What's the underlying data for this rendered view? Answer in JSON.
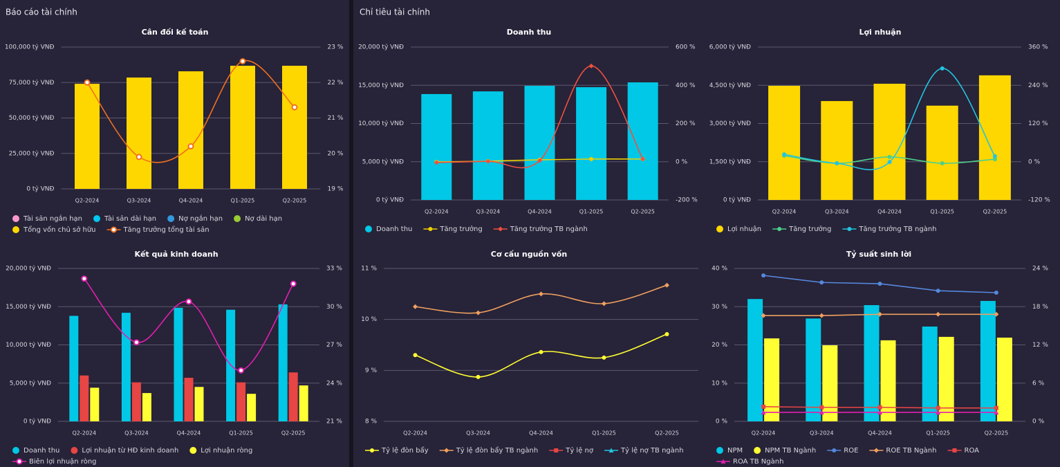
{
  "panels": [
    {
      "title": "Báo cáo tài chính"
    },
    {
      "title": "Chỉ tiêu tài chính"
    }
  ],
  "chart_data": [
    {
      "type": "bar",
      "title": "Cân đối kế toán",
      "smooth": true,
      "categories": [
        "Q2-2024",
        "Q3-2024",
        "Q4-2024",
        "Q1-2025",
        "Q2-2025"
      ],
      "ylim": [
        0,
        100000
      ],
      "yticks": [
        {
          "value": 0,
          "label": "0 tỷ VNĐ"
        },
        {
          "value": 25000,
          "label": "25,000 tỷ VNĐ"
        },
        {
          "value": 50000,
          "label": "50,000 tỷ VNĐ"
        },
        {
          "value": 75000,
          "label": "75,000 tỷ VNĐ"
        },
        {
          "value": 100000,
          "label": "100,000 tỷ VNĐ"
        }
      ],
      "y2lim": [
        19,
        23
      ],
      "y2ticks": [
        {
          "value": 19,
          "label": "19 %"
        },
        {
          "value": 20,
          "label": "20 %"
        },
        {
          "value": 21,
          "label": "21 %"
        },
        {
          "value": 22,
          "label": "22 %"
        },
        {
          "value": 23,
          "label": "23 %"
        }
      ],
      "series": [
        {
          "name": "Tài sản ngắn hạn",
          "type": "bar",
          "color": "#ff99cc",
          "values": [
            null,
            null,
            null,
            null,
            null
          ]
        },
        {
          "name": "Tài sản dài hạn",
          "type": "bar",
          "color": "#00c8f0",
          "values": [
            null,
            null,
            null,
            null,
            null
          ]
        },
        {
          "name": "Nợ ngắn hạn",
          "type": "bar",
          "color": "#3399dd",
          "values": [
            null,
            null,
            null,
            null,
            null
          ]
        },
        {
          "name": "Nợ dài hạn",
          "type": "bar",
          "color": "#99cc33",
          "values": [
            null,
            null,
            null,
            null,
            null
          ]
        },
        {
          "name": "Tổng vốn chủ sở hữu",
          "type": "bar",
          "color": "#ffd700",
          "values": [
            74100,
            78500,
            82900,
            86800,
            86800
          ]
        },
        {
          "name": "Tăng trưởng tổng tài sản",
          "type": "line",
          "axis": "y2",
          "color": "#f07020",
          "marker": "circle-open",
          "values": [
            22.0,
            19.9,
            20.2,
            22.6,
            21.3
          ]
        }
      ]
    },
    {
      "type": "bar",
      "title": "Kết quả kinh doanh",
      "smooth": true,
      "categories": [
        "Q2-2024",
        "Q3-2024",
        "Q4-2024",
        "Q1-2025",
        "Q2-2025"
      ],
      "ylim": [
        0,
        20000
      ],
      "yticks": [
        {
          "value": 0,
          "label": "0 tỷ VNĐ"
        },
        {
          "value": 5000,
          "label": "5,000 tỷ VNĐ"
        },
        {
          "value": 10000,
          "label": "10,000 tỷ VNĐ"
        },
        {
          "value": 15000,
          "label": "15,000 tỷ VNĐ"
        },
        {
          "value": 20000,
          "label": "20,000 tỷ VNĐ"
        }
      ],
      "y2lim": [
        21,
        33
      ],
      "y2ticks": [
        {
          "value": 21,
          "label": "21 %"
        },
        {
          "value": 24,
          "label": "24 %"
        },
        {
          "value": 27,
          "label": "27 %"
        },
        {
          "value": 30,
          "label": "30 %"
        },
        {
          "value": 33,
          "label": "33 %"
        }
      ],
      "series": [
        {
          "name": "Doanh thu",
          "type": "bar",
          "color": "#00c8e6",
          "values": [
            13800,
            14200,
            14850,
            14600,
            15300
          ]
        },
        {
          "name": "Lợi nhuận từ HĐ kinh doanh",
          "type": "bar",
          "color": "#e84545",
          "values": [
            6000,
            5100,
            5700,
            5100,
            6400
          ]
        },
        {
          "name": "Lợi nhuận ròng",
          "type": "bar",
          "color": "#ffff33",
          "values": [
            4400,
            3700,
            4500,
            3600,
            4700
          ]
        },
        {
          "name": "Biên lợi nhuận ròng",
          "type": "line",
          "axis": "y2",
          "color": "#e020b0",
          "marker": "circle-open",
          "values": [
            32.2,
            27.2,
            30.4,
            25.0,
            31.8
          ]
        }
      ]
    },
    {
      "type": "bar",
      "title": "Doanh thu",
      "smooth": true,
      "categories": [
        "Q2-2024",
        "Q3-2024",
        "Q4-2024",
        "Q1-2025",
        "Q2-2025"
      ],
      "ylim": [
        0,
        20000
      ],
      "yticks": [
        {
          "value": 0,
          "label": "0 tỷ VNĐ"
        },
        {
          "value": 5000,
          "label": "5,000 tỷ VNĐ"
        },
        {
          "value": 10000,
          "label": "10,000 tỷ VNĐ"
        },
        {
          "value": 15000,
          "label": "15,000 tỷ VNĐ"
        },
        {
          "value": 20000,
          "label": "20,000 tỷ VNĐ"
        }
      ],
      "y2lim": [
        -200,
        600
      ],
      "y2ticks": [
        {
          "value": -200,
          "label": "-200 %"
        },
        {
          "value": 0,
          "label": "0 %"
        },
        {
          "value": 200,
          "label": "200 %"
        },
        {
          "value": 400,
          "label": "400 %"
        },
        {
          "value": 600,
          "label": "600 %"
        }
      ],
      "series": [
        {
          "name": "Doanh thu",
          "type": "bar",
          "color": "#00c8e6",
          "values": [
            13850,
            14200,
            14930,
            14750,
            15380
          ]
        },
        {
          "name": "Tăng trưởng",
          "type": "line",
          "axis": "y2",
          "color": "#f0d000",
          "marker": "circle",
          "values": [
            -1,
            3,
            10,
            14,
            14
          ]
        },
        {
          "name": "Tăng trưởng TB ngành",
          "type": "line",
          "axis": "y2",
          "color": "#f05040",
          "marker": "diamond",
          "values": [
            -4,
            2,
            6,
            501,
            14
          ]
        }
      ]
    },
    {
      "type": "bar",
      "title": "Lợi nhuận",
      "smooth": true,
      "categories": [
        "Q2-2024",
        "Q3-2024",
        "Q4-2024",
        "Q1-2025",
        "Q2-2025"
      ],
      "ylim": [
        0,
        6000
      ],
      "yticks": [
        {
          "value": 0,
          "label": "0 tỷ VNĐ"
        },
        {
          "value": 1500,
          "label": "1,500 tỷ VNĐ"
        },
        {
          "value": 3000,
          "label": "3,000 tỷ VNĐ"
        },
        {
          "value": 4500,
          "label": "4,500 tỷ VNĐ"
        },
        {
          "value": 6000,
          "label": "6,000 tỷ VNĐ"
        }
      ],
      "y2lim": [
        -120,
        360
      ],
      "y2ticks": [
        {
          "value": -120,
          "label": "-120 %"
        },
        {
          "value": 0,
          "label": "0 %"
        },
        {
          "value": 120,
          "label": "120 %"
        },
        {
          "value": 240,
          "label": "240 %"
        },
        {
          "value": 360,
          "label": "360 %"
        }
      ],
      "series": [
        {
          "name": "Lợi nhuận",
          "type": "bar",
          "color": "#ffd700",
          "values": [
            4480,
            3880,
            4560,
            3700,
            4890
          ]
        },
        {
          "name": "Tăng trưởng",
          "type": "line",
          "axis": "y2",
          "color": "#4dd08a",
          "marker": "circle",
          "values": [
            19,
            -5,
            15,
            -5,
            8
          ]
        },
        {
          "name": "Tăng trưởng TB ngành",
          "type": "line",
          "axis": "y2",
          "color": "#22c4e0",
          "marker": "circle",
          "values": [
            23,
            -5,
            -1,
            293,
            17
          ]
        }
      ]
    },
    {
      "type": "line",
      "title": "Cơ cấu nguồn vốn",
      "smooth": true,
      "categories": [
        "Q2-2024",
        "Q3-2024",
        "Q4-2024",
        "Q1-2025",
        "Q2-2025"
      ],
      "ylim": [
        8,
        11
      ],
      "yticks": [
        {
          "value": 8,
          "label": "8 %"
        },
        {
          "value": 9,
          "label": "9 %"
        },
        {
          "value": 10,
          "label": "10 %"
        },
        {
          "value": 11,
          "label": "11 %"
        }
      ],
      "series": [
        {
          "name": "Tỷ lệ đòn bẩy",
          "type": "line",
          "color": "#ffff33",
          "marker": "circle",
          "values": [
            9.3,
            8.87,
            9.36,
            9.25,
            9.71
          ]
        },
        {
          "name": "Tỷ lệ đòn bẩy TB ngành",
          "type": "line",
          "color": "#f0a060",
          "marker": "diamond",
          "values": [
            10.25,
            10.13,
            10.5,
            10.31,
            10.67
          ]
        },
        {
          "name": "Tỷ lệ nợ",
          "type": "line",
          "color": "#e84545",
          "marker": "square",
          "values": [
            null,
            null,
            null,
            null,
            null
          ]
        },
        {
          "name": "Tỷ lệ nợ TB ngành",
          "type": "line",
          "color": "#22c4e0",
          "marker": "triangle",
          "values": [
            null,
            null,
            null,
            null,
            null
          ]
        }
      ]
    },
    {
      "type": "bar",
      "title": "Tỷ suất sinh lời",
      "smooth": false,
      "categories": [
        "Q2-2024",
        "Q3-2024",
        "Q4-2024",
        "Q1-2025",
        "Q2-2025"
      ],
      "ylim": [
        0,
        40
      ],
      "yticks": [
        {
          "value": 0,
          "label": "0 %"
        },
        {
          "value": 10,
          "label": "10 %"
        },
        {
          "value": 20,
          "label": "20 %"
        },
        {
          "value": 30,
          "label": "30 %"
        },
        {
          "value": 40,
          "label": "40 %"
        }
      ],
      "y2lim": [
        0,
        24
      ],
      "y2ticks": [
        {
          "value": 0,
          "label": "0 %"
        },
        {
          "value": 6,
          "label": "6 %"
        },
        {
          "value": 12,
          "label": "12 %"
        },
        {
          "value": 18,
          "label": "18 %"
        },
        {
          "value": 24,
          "label": "24 %"
        }
      ],
      "series": [
        {
          "name": "NPM",
          "type": "bar",
          "color": "#00c8e6",
          "values": [
            32.0,
            26.9,
            30.4,
            24.8,
            31.5
          ]
        },
        {
          "name": "NPM TB Ngành",
          "type": "bar",
          "color": "#ffff33",
          "values": [
            21.7,
            19.9,
            21.2,
            22.1,
            21.9
          ]
        },
        {
          "name": "ROE",
          "type": "line",
          "axis": "y2",
          "color": "#5588dd",
          "marker": "circle",
          "values": [
            22.9,
            21.8,
            21.6,
            20.5,
            20.2
          ]
        },
        {
          "name": "ROE TB Ngành",
          "type": "line",
          "axis": "y2",
          "color": "#f0a060",
          "marker": "diamond",
          "values": [
            16.6,
            16.6,
            16.8,
            16.8,
            16.8
          ]
        },
        {
          "name": "ROA",
          "type": "line",
          "axis": "y2",
          "color": "#e84545",
          "marker": "square",
          "values": [
            2.3,
            2.2,
            2.2,
            2.1,
            2.1
          ]
        },
        {
          "name": "ROA TB Ngành",
          "type": "line",
          "axis": "y2",
          "color": "#e020b0",
          "marker": "triangle",
          "values": [
            1.4,
            1.4,
            1.4,
            1.4,
            1.4
          ]
        }
      ]
    }
  ]
}
